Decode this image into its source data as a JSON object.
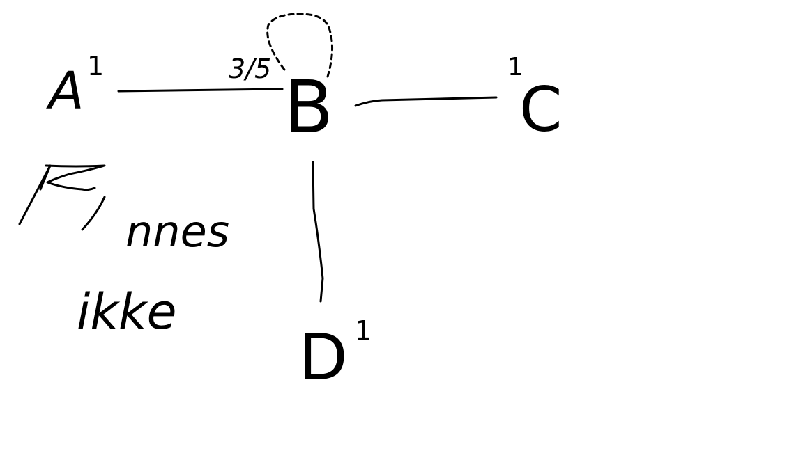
{
  "diagram": {
    "nodes": [
      {
        "id": "A",
        "label": "A",
        "weight": "1"
      },
      {
        "id": "B",
        "label": "B",
        "weight": ""
      },
      {
        "id": "C",
        "label": "C",
        "weight": "1"
      },
      {
        "id": "D",
        "label": "D",
        "weight": "1"
      }
    ],
    "edges": [
      {
        "from": "A",
        "to": "B",
        "label": ""
      },
      {
        "from": "B",
        "to": "C",
        "label": ""
      },
      {
        "from": "B",
        "to": "D",
        "label": ""
      }
    ],
    "self_loop": {
      "node": "B",
      "label": "3/5",
      "style": "dashed"
    },
    "note": {
      "symbol": "P",
      "line1": "nnes",
      "line2": "ikke"
    }
  },
  "colors": {
    "ink": "#000000",
    "background": "#ffffff"
  }
}
